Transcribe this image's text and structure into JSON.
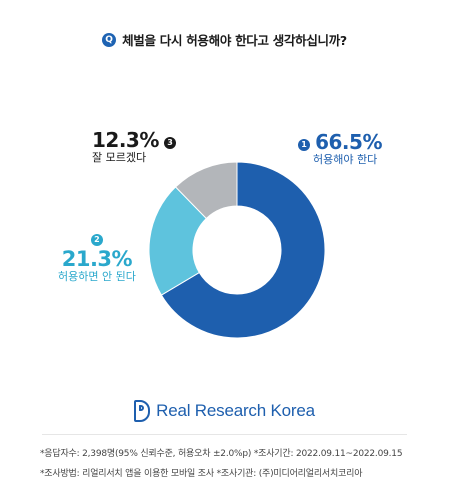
{
  "question": {
    "badge": "Q",
    "text": "체벌을 다시 허용해야 한다고 생각하십니까?"
  },
  "chart_data": {
    "type": "pie",
    "donut": true,
    "slices": [
      {
        "number": "1",
        "value": 66.5,
        "value_label": "66.5%",
        "label": "허용해야 한다",
        "color": "#1e5fae",
        "label_color": "#1e5fae"
      },
      {
        "number": "2",
        "value": 21.3,
        "value_label": "21.3%",
        "label": "허용하면 안 된다",
        "color": "#5ec3dd",
        "label_color": "#2aa8cc"
      },
      {
        "number": "3",
        "value": 12.3,
        "value_label": "12.3%",
        "label": "잘 모르겠다",
        "color": "#b3b6ba",
        "label_color": "#1a1a1a"
      }
    ]
  },
  "brand": {
    "name": "Real Research Korea",
    "color": "#1e5fae"
  },
  "footer": {
    "line1": "*응답자수: 2,398명(95% 신뢰수준, 허용오차 ±2.0%p)  *조사기간: 2022.09.11~2022.09.15",
    "line2": "*조사방법: 리얼리서치 앱을 이용한 모바일 조사  *조사기관: (주)미디어리얼리서치코리아"
  }
}
